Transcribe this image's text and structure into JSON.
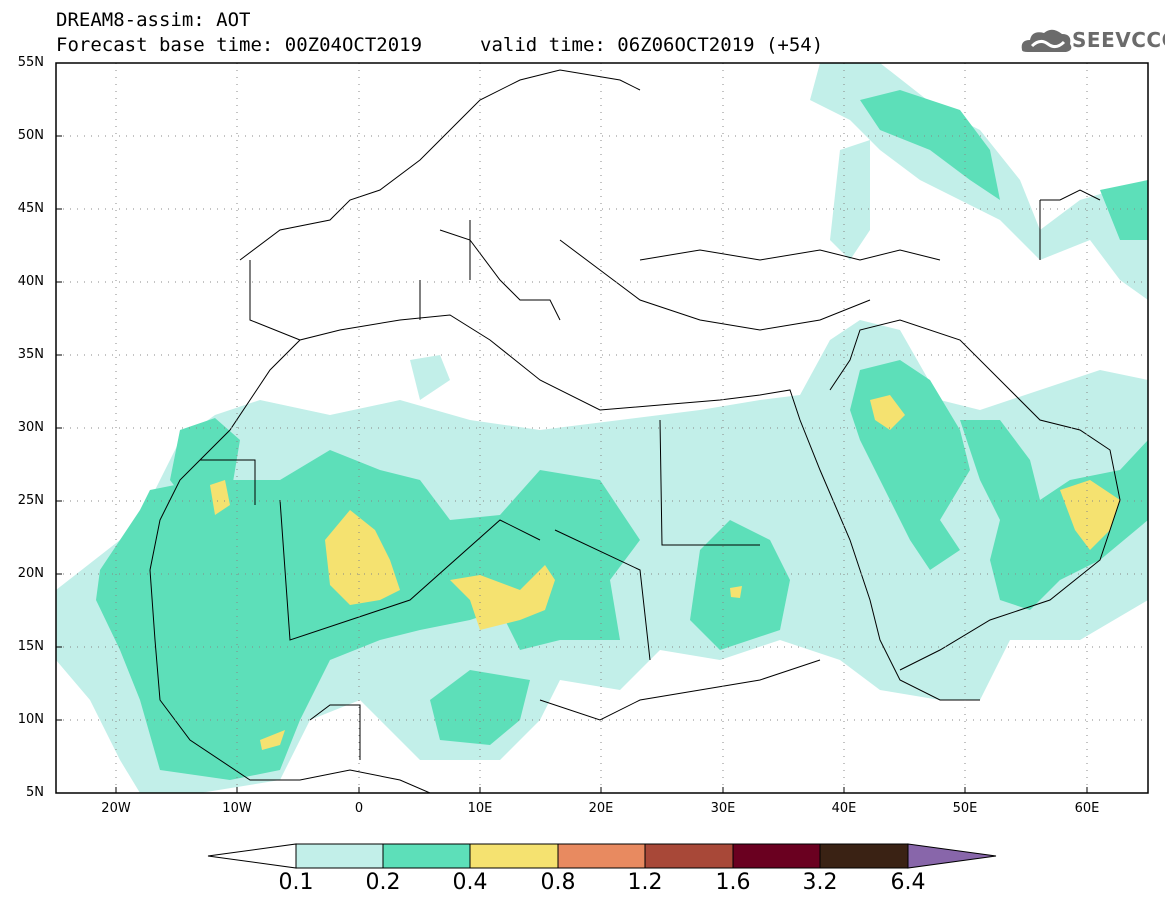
{
  "header": {
    "line1": "DREAM8-assim: AOT",
    "line2": "Forecast base time: 00Z04OCT2019",
    "valid": "valid time: 06Z06OCT2019 (+54)",
    "logo_text": "SEEVCCC"
  },
  "map": {
    "lat_labels": [
      "55N",
      "50N",
      "45N",
      "40N",
      "35N",
      "30N",
      "25N",
      "20N",
      "15N",
      "10N",
      "5N"
    ],
    "lon_labels": [
      "20W",
      "10W",
      "0",
      "10E",
      "20E",
      "30E",
      "40E",
      "50E",
      "60E"
    ],
    "lat_range": [
      5,
      55
    ],
    "lon_range": [
      -25,
      65
    ],
    "land_color": "#ffffff",
    "boundary_color": "#000000"
  },
  "colorbar": {
    "levels": [
      "0.1",
      "0.2",
      "0.4",
      "0.8",
      "1.2",
      "1.6",
      "3.2",
      "6.4"
    ],
    "colors": [
      "#ffffff",
      "#c2efe9",
      "#5ddfb9",
      "#f5e270",
      "#e88a60",
      "#a84838",
      "#6a0020",
      "#3a2214",
      "#8866aa"
    ]
  }
}
